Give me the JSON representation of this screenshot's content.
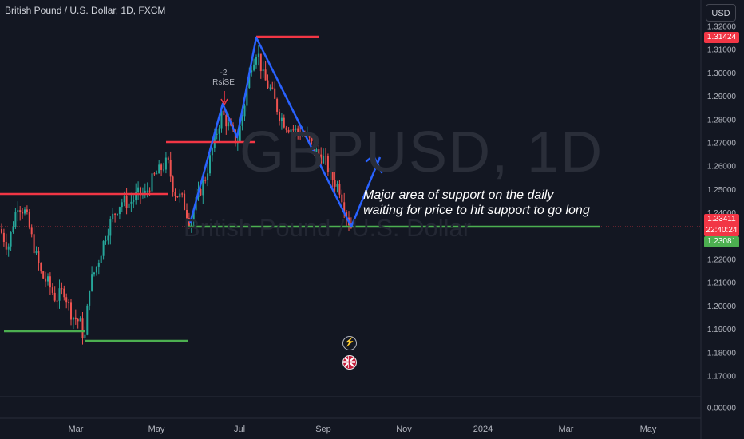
{
  "header": {
    "symbol_title": "British Pound / U.S. Dollar, 1D, FXCM",
    "currency_button": "USD"
  },
  "watermark": {
    "symbol": "GBPUSD, 1D",
    "description": "British Pound / U.S. Dollar"
  },
  "annotation": {
    "line1": "Major area of support on the daily",
    "line2": "waiting for price to hit support to go long"
  },
  "indicator_marker": {
    "value": "-2",
    "name": "RsiSE"
  },
  "price_axis": {
    "ticks": [
      "1.32000",
      "1.31000",
      "1.30000",
      "1.29000",
      "1.28000",
      "1.27000",
      "1.26000",
      "1.25000",
      "1.24000",
      "1.23000",
      "1.22000",
      "1.21000",
      "1.20000",
      "1.19000",
      "1.18000",
      "1.17000",
      "0.00000"
    ],
    "tags": {
      "high_value": "1.31424",
      "current_price": "1.23411",
      "countdown": "22:40:24",
      "low_value": "1.23081"
    }
  },
  "time_axis": {
    "ticks": [
      "Mar",
      "May",
      "Jul",
      "Sep",
      "Nov",
      "2024",
      "Mar",
      "May"
    ]
  },
  "colors": {
    "background": "#131722",
    "bull": "#26a69a",
    "bear": "#ef5350",
    "resistance": "#f23645",
    "support": "#4caf50",
    "drawing": "#2962ff",
    "price_tag_red": "#f23645",
    "price_tag_green": "#4caf50"
  },
  "icons": {
    "event_flash": "flash-icon",
    "event_flag": "uk-flag-icon"
  }
}
